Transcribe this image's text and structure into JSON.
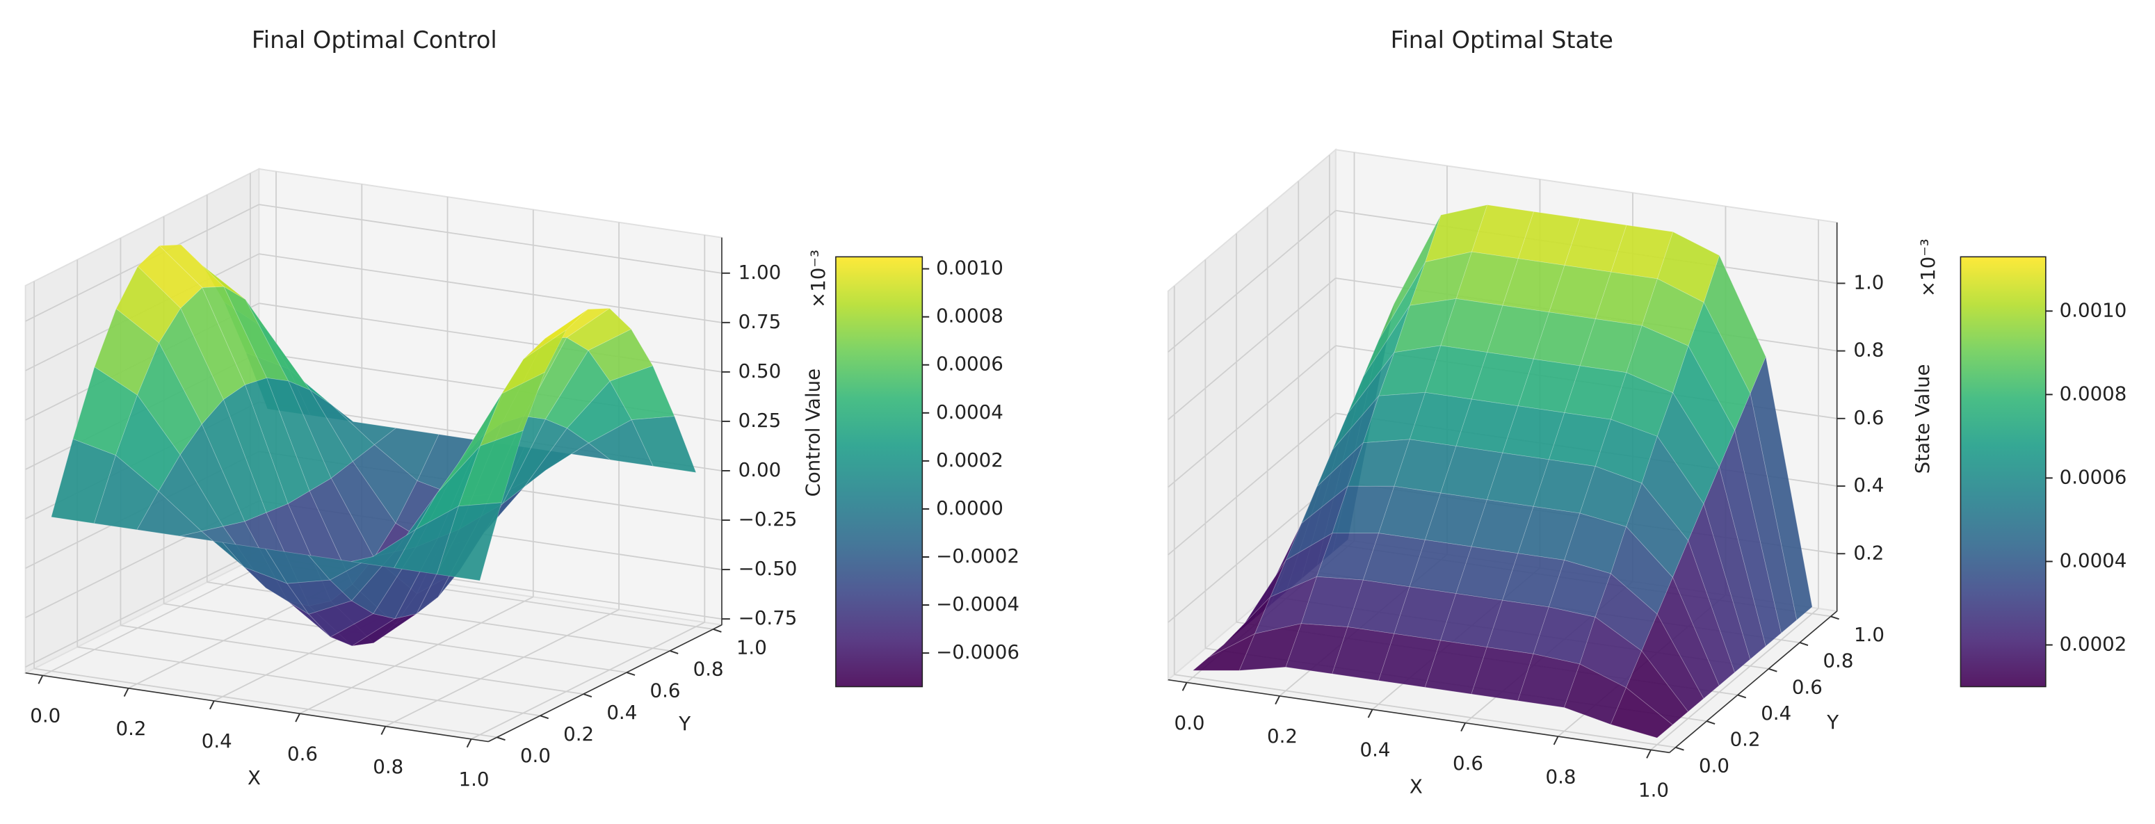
{
  "chart_data": [
    {
      "type": "surface",
      "title": "Final Optimal Control",
      "x_label": "X",
      "y_label": "Y",
      "z_label": "Control Value",
      "z_offset_label": "×10⁻³",
      "colormap": "viridis",
      "grid": true,
      "x": [
        0,
        0.1,
        0.2,
        0.3,
        0.4,
        0.5,
        0.6,
        0.7,
        0.8,
        0.9,
        1
      ],
      "y": [
        0,
        0.1,
        0.2,
        0.3,
        0.4,
        0.5,
        0.6,
        0.7,
        0.8,
        0.9,
        1
      ],
      "z": [
        [
          0,
          0.34,
          0.65,
          0.89,
          1.05,
          1.1,
          1.05,
          0.89,
          0.65,
          0.34,
          0
        ],
        [
          0,
          0.29,
          0.54,
          0.75,
          0.87,
          0.92,
          0.87,
          0.75,
          0.54,
          0.29,
          0
        ],
        [
          0,
          0.14,
          0.27,
          0.37,
          0.44,
          0.46,
          0.44,
          0.37,
          0.27,
          0.14,
          0
        ],
        [
          0,
          -0.03,
          -0.06,
          -0.09,
          -0.1,
          -0.11,
          -0.1,
          -0.09,
          -0.06,
          -0.03,
          0
        ],
        [
          0,
          -0.18,
          -0.34,
          -0.46,
          -0.54,
          -0.57,
          -0.54,
          -0.46,
          -0.34,
          -0.18,
          0
        ],
        [
          0,
          -0.23,
          -0.44,
          -0.61,
          -0.71,
          -0.75,
          -0.71,
          -0.61,
          -0.44,
          -0.23,
          0
        ],
        [
          0,
          -0.18,
          -0.34,
          -0.46,
          -0.54,
          -0.57,
          -0.54,
          -0.46,
          -0.34,
          -0.18,
          0
        ],
        [
          0,
          -0.03,
          -0.06,
          -0.09,
          -0.1,
          -0.11,
          -0.1,
          -0.09,
          -0.06,
          -0.03,
          0
        ],
        [
          0,
          0.14,
          0.27,
          0.37,
          0.44,
          0.46,
          0.44,
          0.37,
          0.27,
          0.14,
          0
        ],
        [
          0,
          0.29,
          0.54,
          0.75,
          0.87,
          0.92,
          0.87,
          0.75,
          0.54,
          0.29,
          0
        ],
        [
          0,
          0.34,
          0.65,
          0.89,
          1.05,
          1.1,
          1.05,
          0.89,
          0.65,
          0.34,
          0
        ]
      ],
      "xlim": [
        -0.04,
        1.04
      ],
      "ylim": [
        -0.04,
        1.04
      ],
      "zlim": [
        -0.78,
        1.18
      ],
      "xticks": [
        {
          "value": 0,
          "label": "0.0"
        },
        0.2,
        0.4,
        0.6,
        0.8,
        {
          "value": 1,
          "label": "1.0"
        }
      ],
      "yticks": [
        {
          "value": 0,
          "label": "0.0"
        },
        0.2,
        0.4,
        0.6,
        0.8,
        {
          "value": 1,
          "label": "1.0"
        }
      ],
      "zticks": [
        {
          "value": -0.75,
          "label": "−0.75"
        },
        {
          "value": -0.5,
          "label": "−0.50"
        },
        {
          "value": -0.25,
          "label": "−0.25"
        },
        {
          "value": 0,
          "label": "0.00"
        },
        0.25,
        {
          "value": 0.5,
          "label": "0.50"
        },
        0.75,
        {
          "value": 1,
          "label": "1.00"
        }
      ],
      "clim": [
        -0.74,
        1.05
      ],
      "cticks": [
        {
          "value": -0.6,
          "label": "−0.0006"
        },
        {
          "value": -0.4,
          "label": "−0.0004"
        },
        {
          "value": -0.2,
          "label": "−0.0002"
        },
        {
          "value": 0,
          "label": "0.0000"
        },
        {
          "value": 0.2,
          "label": "0.0002"
        },
        {
          "value": 0.4,
          "label": "0.0004"
        },
        {
          "value": 0.6,
          "label": "0.0006"
        },
        {
          "value": 0.8,
          "label": "0.0008"
        },
        {
          "value": 1.0,
          "label": "0.0010"
        }
      ]
    },
    {
      "type": "surface",
      "title": "Final Optimal State",
      "x_label": "X",
      "y_label": "Y",
      "z_label": "State Value",
      "z_offset_label": "×10⁻³",
      "colormap": "viridis",
      "grid": true,
      "x": [
        0,
        0.1,
        0.2,
        0.3,
        0.4,
        0.5,
        0.6,
        0.7,
        0.8,
        0.9,
        1
      ],
      "y": [
        0,
        0.1,
        0.2,
        0.3,
        0.4,
        0.5,
        0.6,
        0.7,
        0.8,
        0.9,
        1
      ],
      "z": [
        [
          0.05,
          0.05,
          0.05,
          0.05,
          0.05,
          0.05,
          0.05,
          0.05,
          0.05,
          0.05,
          0.05
        ],
        [
          0.07,
          0.14,
          0.21,
          0.28,
          0.35,
          0.42,
          0.49,
          0.56,
          0.63,
          0.7,
          0.77
        ],
        [
          0.1,
          0.19,
          0.29,
          0.38,
          0.48,
          0.57,
          0.67,
          0.76,
          0.86,
          0.95,
          1.05
        ],
        [
          0.1,
          0.2,
          0.3,
          0.4,
          0.5,
          0.6,
          0.7,
          0.8,
          0.9,
          1.0,
          1.1
        ],
        [
          0.1,
          0.2,
          0.3,
          0.4,
          0.5,
          0.6,
          0.7,
          0.8,
          0.9,
          1.0,
          1.1
        ],
        [
          0.1,
          0.2,
          0.3,
          0.4,
          0.5,
          0.6,
          0.7,
          0.8,
          0.9,
          1.0,
          1.1
        ],
        [
          0.1,
          0.2,
          0.3,
          0.4,
          0.5,
          0.6,
          0.7,
          0.8,
          0.9,
          1.0,
          1.1
        ],
        [
          0.1,
          0.2,
          0.3,
          0.4,
          0.5,
          0.6,
          0.7,
          0.8,
          0.9,
          1.0,
          1.1
        ],
        [
          0.1,
          0.19,
          0.29,
          0.38,
          0.48,
          0.57,
          0.67,
          0.76,
          0.86,
          0.95,
          1.05
        ],
        [
          0.07,
          0.14,
          0.21,
          0.28,
          0.35,
          0.42,
          0.49,
          0.56,
          0.63,
          0.7,
          0.77
        ],
        [
          0.05,
          0.05,
          0.05,
          0.05,
          0.05,
          0.05,
          0.05,
          0.05,
          0.05,
          0.05,
          0.05
        ]
      ],
      "xlim": [
        -0.04,
        1.04
      ],
      "ylim": [
        -0.04,
        1.04
      ],
      "zlim": [
        0.03,
        1.18
      ],
      "xticks": [
        {
          "value": 0,
          "label": "0.0"
        },
        0.2,
        0.4,
        0.6,
        0.8,
        {
          "value": 1,
          "label": "1.0"
        }
      ],
      "yticks": [
        {
          "value": 0,
          "label": "0.0"
        },
        0.2,
        0.4,
        0.6,
        0.8,
        {
          "value": 1,
          "label": "1.0"
        }
      ],
      "zticks": [
        0.2,
        0.4,
        0.6,
        0.8,
        {
          "value": 1,
          "label": "1.0"
        }
      ],
      "clim": [
        0.1,
        1.13
      ],
      "cticks": [
        {
          "value": 0.2,
          "label": "0.0002"
        },
        {
          "value": 0.4,
          "label": "0.0004"
        },
        {
          "value": 0.6,
          "label": "0.0006"
        },
        {
          "value": 0.8,
          "label": "0.0008"
        },
        {
          "value": 1.0,
          "label": "0.0010"
        }
      ]
    }
  ]
}
